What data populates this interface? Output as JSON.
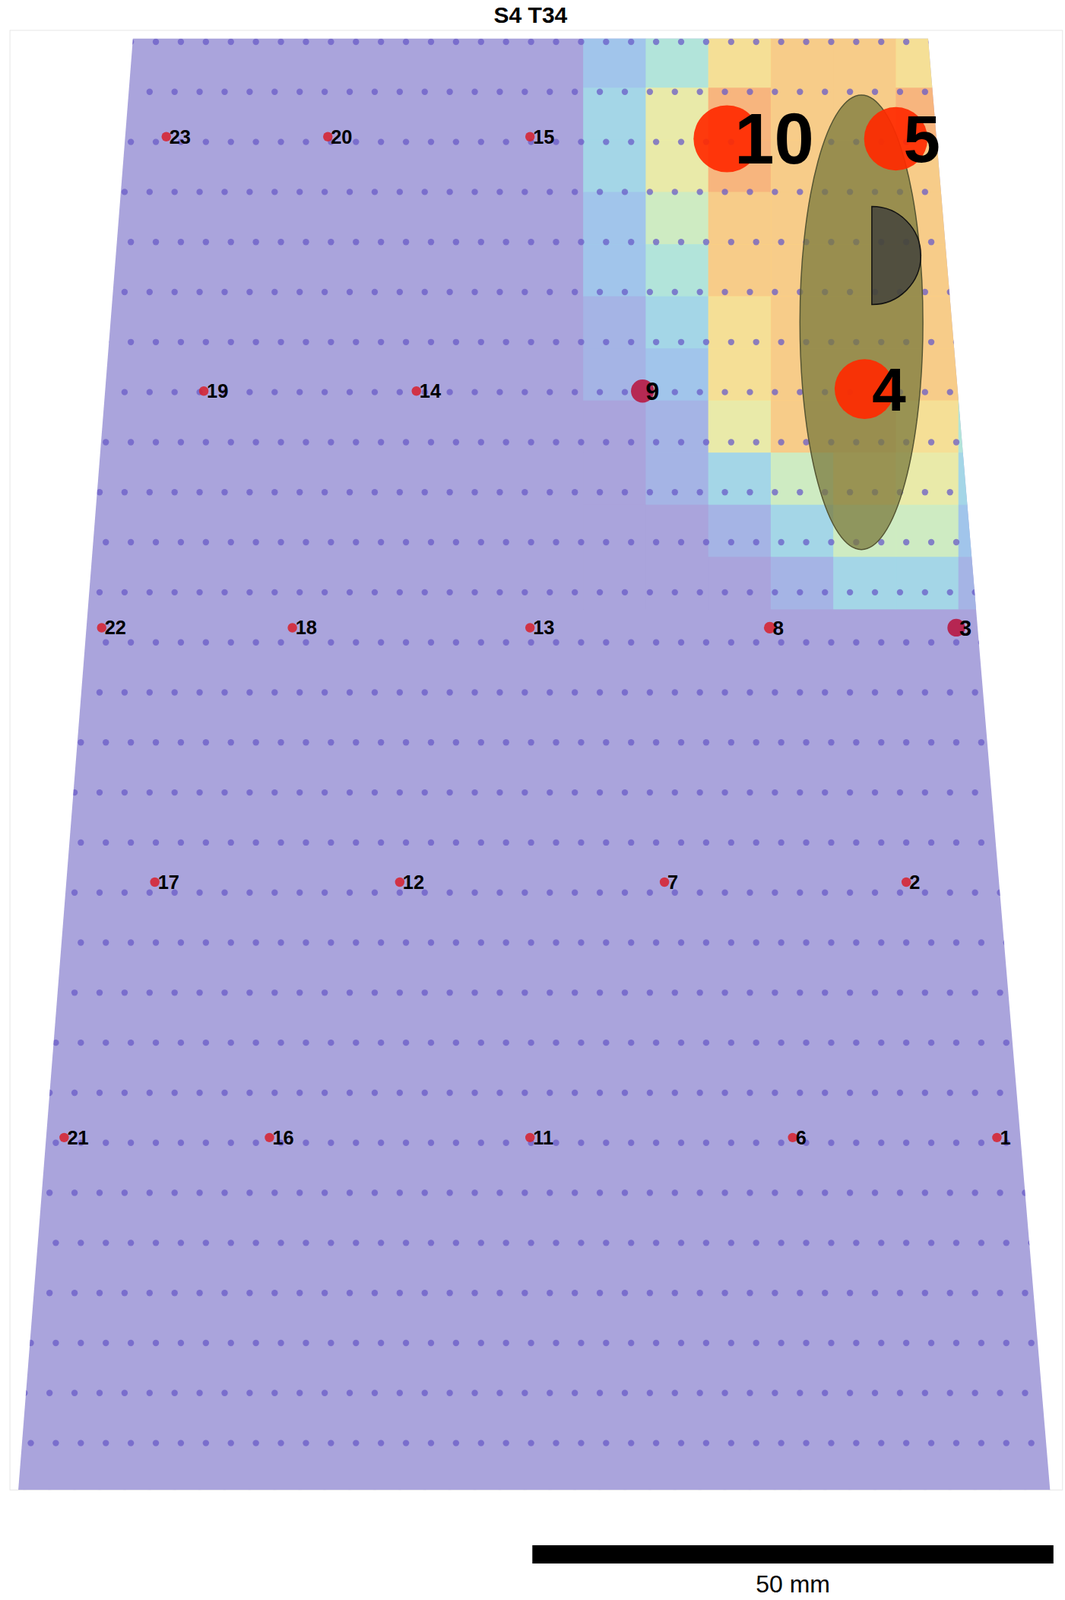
{
  "chart_data": {
    "type": "scatter",
    "title": "S4 T34",
    "tick_labels": false,
    "xlim": [
      -1,
      100
    ],
    "ylim": [
      0,
      140
    ],
    "outline": [
      [
        -0.2,
        0
      ],
      [
        98.8,
        0
      ],
      [
        87.1,
        139.2
      ],
      [
        10.8,
        139.2
      ]
    ],
    "points": [
      {
        "label": "1",
        "x": 93.7,
        "y": 33.8,
        "size": 0.02
      },
      {
        "label": "2",
        "x": 85.0,
        "y": 58.3,
        "size": 0.02
      },
      {
        "label": "3",
        "x": 89.8,
        "y": 82.7,
        "size": 0.07
      },
      {
        "label": "4",
        "x": 81.0,
        "y": 105.6,
        "size": 0.8
      },
      {
        "label": "5",
        "x": 84.0,
        "y": 129.6,
        "size": 0.9
      },
      {
        "label": "6",
        "x": 74.1,
        "y": 33.8,
        "size": 0.02
      },
      {
        "label": "7",
        "x": 61.8,
        "y": 58.3,
        "size": 0.02
      },
      {
        "label": "8",
        "x": 71.9,
        "y": 82.7,
        "size": 0.03
      },
      {
        "label": "9",
        "x": 59.7,
        "y": 105.4,
        "size": 0.12
      },
      {
        "label": "10",
        "x": 67.8,
        "y": 129.6,
        "size": 1.0
      },
      {
        "label": "11",
        "x": 48.9,
        "y": 33.8,
        "size": 0.02
      },
      {
        "label": "12",
        "x": 36.4,
        "y": 58.3,
        "size": 0.02
      },
      {
        "label": "13",
        "x": 48.9,
        "y": 82.7,
        "size": 0.02
      },
      {
        "label": "14",
        "x": 38.0,
        "y": 105.4,
        "size": 0.02
      },
      {
        "label": "15",
        "x": 48.9,
        "y": 129.8,
        "size": 0.02
      },
      {
        "label": "16",
        "x": 23.9,
        "y": 33.8,
        "size": 0.02
      },
      {
        "label": "17",
        "x": 12.9,
        "y": 58.3,
        "size": 0.02
      },
      {
        "label": "18",
        "x": 26.1,
        "y": 82.7,
        "size": 0.02
      },
      {
        "label": "19",
        "x": 17.6,
        "y": 105.4,
        "size": 0.02
      },
      {
        "label": "20",
        "x": 29.5,
        "y": 129.8,
        "size": 0.02
      },
      {
        "label": "21",
        "x": 4.2,
        "y": 33.8,
        "size": 0.02
      },
      {
        "label": "22",
        "x": 7.8,
        "y": 82.7,
        "size": 0.02
      },
      {
        "label": "23",
        "x": 14.0,
        "y": 129.8,
        "size": 0.02
      }
    ],
    "heatmap": {
      "x": [
        57,
        63,
        69,
        75,
        81,
        87,
        93
      ],
      "y": [
        137,
        132,
        127,
        122,
        117,
        112,
        107,
        102,
        97,
        92,
        87
      ],
      "zlim": [
        0,
        1
      ],
      "values": [
        [
          0.2,
          0.4,
          0.7,
          0.8,
          0.8,
          0.7,
          0.4
        ],
        [
          0.3,
          0.6,
          0.9,
          0.8,
          0.8,
          0.9,
          0.5
        ],
        [
          0.3,
          0.6,
          0.9,
          0.8,
          0.8,
          0.8,
          0.5
        ],
        [
          0.2,
          0.5,
          0.8,
          0.8,
          0.8,
          0.8,
          0.5
        ],
        [
          0.2,
          0.4,
          0.8,
          0.8,
          0.8,
          0.8,
          0.5
        ],
        [
          0.1,
          0.3,
          0.7,
          0.8,
          0.8,
          0.8,
          0.4
        ],
        [
          0.1,
          0.2,
          0.7,
          0.8,
          0.8,
          0.8,
          0.4
        ],
        [
          0.0,
          0.1,
          0.6,
          0.8,
          0.8,
          0.7,
          0.4
        ],
        [
          0.0,
          0.1,
          0.3,
          0.5,
          0.7,
          0.6,
          0.3
        ],
        [
          0.0,
          0.0,
          0.1,
          0.3,
          0.5,
          0.5,
          0.2
        ],
        [
          0.0,
          0.0,
          0.0,
          0.1,
          0.3,
          0.3,
          0.1
        ]
      ]
    },
    "ellipse": {
      "cx": 80.7,
      "cy": 112.0,
      "rx": 5.9,
      "ry": 21.8
    },
    "half_circle": {
      "cx": 81.7,
      "cy": 118.4,
      "r": 4.7
    },
    "scale_bar": {
      "length": 50,
      "label": "50 mm"
    }
  }
}
